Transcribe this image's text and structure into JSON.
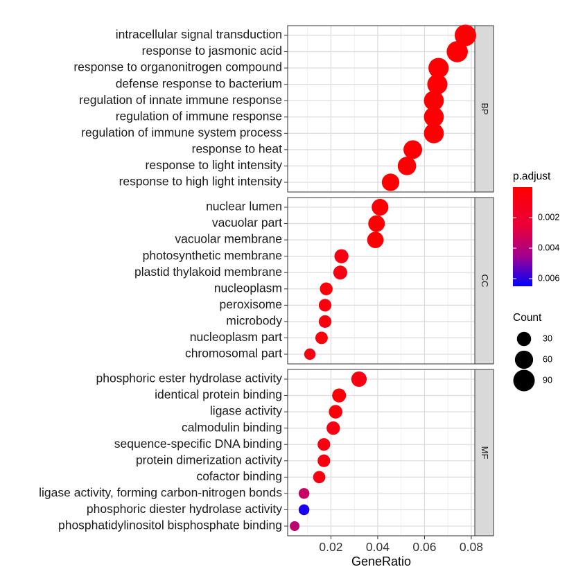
{
  "chart_data": {
    "type": "scatter",
    "xlabel": "GeneRatio",
    "x_ticks": [
      0.02,
      0.04,
      0.06,
      0.08
    ],
    "x_tick_labels": [
      "0.02",
      "0.04",
      "0.06",
      "0.08"
    ],
    "xlim": [
      0.0015,
      0.0815
    ],
    "grid": true,
    "facets": [
      {
        "label": "BP",
        "points": [
          {
            "term": "intracellular signal transduction",
            "x": 0.0775,
            "count": 90,
            "p_adjust": 0.0002
          },
          {
            "term": "response to jasmonic acid",
            "x": 0.074,
            "count": 87,
            "p_adjust": 0.0002
          },
          {
            "term": "response to organonitrogen compound",
            "x": 0.066,
            "count": 78,
            "p_adjust": 0.0002
          },
          {
            "term": "defense response to bacterium",
            "x": 0.0655,
            "count": 77,
            "p_adjust": 0.0002
          },
          {
            "term": "regulation of innate immune response",
            "x": 0.064,
            "count": 75,
            "p_adjust": 0.0002
          },
          {
            "term": "regulation of immune response",
            "x": 0.064,
            "count": 75,
            "p_adjust": 0.0002
          },
          {
            "term": "regulation of immune system process",
            "x": 0.064,
            "count": 75,
            "p_adjust": 0.0002
          },
          {
            "term": "response to heat",
            "x": 0.055,
            "count": 64,
            "p_adjust": 0.0002
          },
          {
            "term": "response to light intensity",
            "x": 0.0525,
            "count": 62,
            "p_adjust": 0.0002
          },
          {
            "term": "response to high light intensity",
            "x": 0.0455,
            "count": 54,
            "p_adjust": 0.0002
          }
        ]
      },
      {
        "label": "CC",
        "points": [
          {
            "term": "nuclear lumen",
            "x": 0.041,
            "count": 48,
            "p_adjust": 0.0002
          },
          {
            "term": "vacuolar part",
            "x": 0.0395,
            "count": 47,
            "p_adjust": 0.0002
          },
          {
            "term": "vacuolar membrane",
            "x": 0.039,
            "count": 46,
            "p_adjust": 0.0002
          },
          {
            "term": "photosynthetic membrane",
            "x": 0.0245,
            "count": 29,
            "p_adjust": 0.0008
          },
          {
            "term": "plastid thylakoid membrane",
            "x": 0.024,
            "count": 28,
            "p_adjust": 0.0008
          },
          {
            "term": "nucleoplasm",
            "x": 0.018,
            "count": 21,
            "p_adjust": 0.0004
          },
          {
            "term": "peroxisome",
            "x": 0.0175,
            "count": 20,
            "p_adjust": 0.0006
          },
          {
            "term": "microbody",
            "x": 0.0175,
            "count": 20,
            "p_adjust": 0.0006
          },
          {
            "term": "nucleoplasm part",
            "x": 0.016,
            "count": 19,
            "p_adjust": 0.0004
          },
          {
            "term": "chromosomal part",
            "x": 0.011,
            "count": 13,
            "p_adjust": 0.0008
          }
        ]
      },
      {
        "label": "MF",
        "points": [
          {
            "term": "phosphoric ester hydrolase activity",
            "x": 0.032,
            "count": 38,
            "p_adjust": 0.0008
          },
          {
            "term": "identical protein binding",
            "x": 0.0235,
            "count": 28,
            "p_adjust": 0.0003
          },
          {
            "term": "ligase activity",
            "x": 0.022,
            "count": 26,
            "p_adjust": 0.0003
          },
          {
            "term": "calmodulin binding",
            "x": 0.021,
            "count": 25,
            "p_adjust": 0.0009
          },
          {
            "term": "sequence-specific DNA binding",
            "x": 0.017,
            "count": 20,
            "p_adjust": 0.0007
          },
          {
            "term": "protein dimerization activity",
            "x": 0.017,
            "count": 20,
            "p_adjust": 0.0007
          },
          {
            "term": "cofactor binding",
            "x": 0.015,
            "count": 18,
            "p_adjust": 0.0008
          },
          {
            "term": "ligase activity, forming carbon-nitrogen bonds",
            "x": 0.0085,
            "count": 10,
            "p_adjust": 0.0035
          },
          {
            "term": "phosphoric diester hydrolase activity",
            "x": 0.0085,
            "count": 10,
            "p_adjust": 0.0062
          },
          {
            "term": "phosphatidylinositol bisphosphate binding",
            "x": 0.0045,
            "count": 5,
            "p_adjust": 0.0038
          }
        ]
      }
    ],
    "color_legend": {
      "title": "p.adjust",
      "min": 0,
      "max": 0.0065,
      "low_color": "#ff0000",
      "high_color": "#0000ff",
      "ticks": [
        0.002,
        0.004,
        0.006
      ],
      "tick_labels": [
        "0.002",
        "0.004",
        "0.006"
      ]
    },
    "size_legend": {
      "title": "Count",
      "values": [
        30,
        60,
        90
      ],
      "labels": [
        "30",
        "60",
        "90"
      ],
      "count_range": [
        5,
        90
      ]
    },
    "legend_position": "right"
  }
}
